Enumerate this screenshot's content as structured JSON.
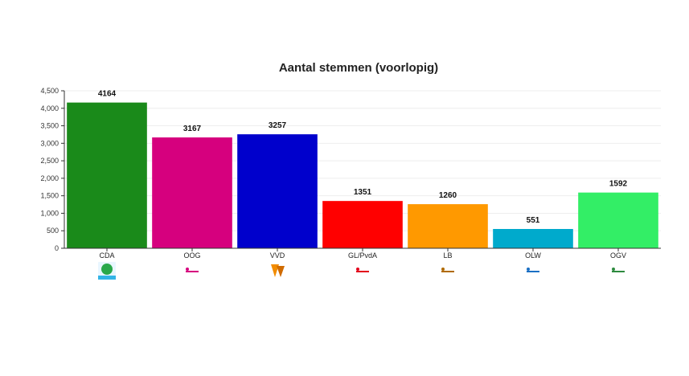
{
  "chart_data": {
    "type": "bar",
    "title": "Aantal stemmen (voorlopig)",
    "xlabel": "",
    "ylabel": "",
    "ylim": [
      0,
      4500
    ],
    "yticks": [
      0,
      500,
      1000,
      1500,
      2000,
      2500,
      3000,
      3500,
      4000,
      4500
    ],
    "ytick_labels": [
      "0",
      "500",
      "1,000",
      "1,500",
      "2,000",
      "2,500",
      "3,000",
      "3,500",
      "4,000",
      "4,500"
    ],
    "grid": true,
    "categories": [
      "CDA",
      "OOG",
      "VVD",
      "GL/PvdA",
      "LB",
      "OLW",
      "OGV"
    ],
    "values": [
      4164,
      3167,
      3257,
      1351,
      1260,
      551,
      1592
    ],
    "data_labels": [
      "4164",
      "3167",
      "3257",
      "1351",
      "1260",
      "551",
      "1592"
    ],
    "colors": [
      "#1a8a1a",
      "#d6007e",
      "#0000cc",
      "#ff0000",
      "#ff9900",
      "#00aacc",
      "#33ee66"
    ],
    "logos": [
      {
        "name": "cda-logo",
        "text": "CDA",
        "color": "#2aa84a"
      },
      {
        "name": "oog-logo",
        "text": "OOG",
        "color": "#d6007e"
      },
      {
        "name": "vvd-logo",
        "text": "VVD",
        "color": "#f28c00"
      },
      {
        "name": "gl-pvda-logo",
        "text": "GL/PvdA",
        "color": "#e3001b"
      },
      {
        "name": "lb-logo",
        "text": "Lokaal Belang",
        "color": "#b06a00"
      },
      {
        "name": "olw-logo",
        "text": "OLW",
        "color": "#1a6fc4"
      },
      {
        "name": "ogv-logo",
        "text": "OGV",
        "color": "#2d8a3e"
      }
    ]
  }
}
